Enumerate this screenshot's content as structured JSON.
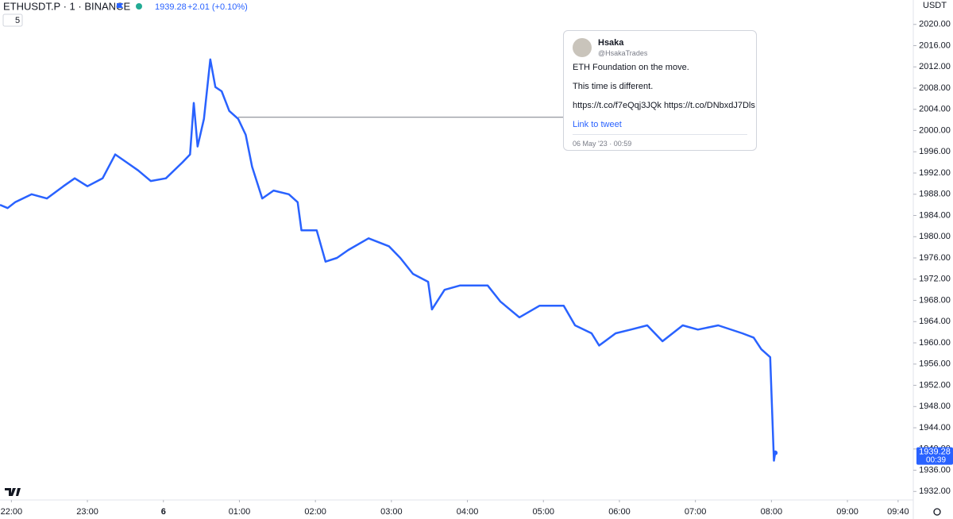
{
  "chart_data": {
    "type": "line",
    "symbol": "ETHUSDT.P · 1 · BINANCE",
    "change": "+2.01 (+0.10%)",
    "currency": "USDT",
    "interval_badge": "5",
    "countdown": "00:39",
    "x": [
      -9,
      -3,
      3,
      16,
      28,
      41,
      50,
      60,
      72,
      82,
      91,
      100,
      110,
      122,
      135,
      141,
      144,
      147,
      152,
      157,
      161,
      166,
      172,
      179,
      185,
      190,
      198,
      207,
      219,
      226,
      229,
      241,
      248,
      257,
      266,
      282,
      298,
      307,
      317,
      329,
      332,
      342,
      354,
      367,
      376,
      386,
      401,
      417,
      436,
      445,
      458,
      464,
      477,
      489,
      502,
      514,
      530,
      542,
      558,
      577,
      586,
      592,
      599,
      602,
      603
    ],
    "series": [
      {
        "name": "ETHUSDT.P",
        "color": "#2962ff",
        "values": [
          1986.0,
          1985.4,
          1986.5,
          1988.0,
          1987.2,
          1989.5,
          1991.0,
          1989.5,
          1991.0,
          1995.5,
          1994.0,
          1992.5,
          1990.5,
          1991.0,
          1994.0,
          1995.5,
          2005.2,
          1997.0,
          2002.2,
          2013.4,
          2008.2,
          2007.4,
          2003.7,
          2002.2,
          1999.2,
          1993.2,
          1987.2,
          1988.7,
          1988.0,
          1986.5,
          1981.2,
          1981.2,
          1975.3,
          1976.0,
          1977.5,
          1979.7,
          1978.2,
          1976.0,
          1973.0,
          1971.5,
          1966.3,
          1970.0,
          1970.8,
          1970.8,
          1970.8,
          1967.8,
          1964.8,
          1967.0,
          1967.0,
          1963.3,
          1961.8,
          1959.5,
          1961.8,
          1962.5,
          1963.3,
          1960.3,
          1963.3,
          1962.5,
          1963.3,
          1961.8,
          1961.0,
          1958.8,
          1957.3,
          1937.8,
          1939.28
        ]
      }
    ],
    "xlim": [
      -9,
      712
    ],
    "ylim": [
      1930.4,
      2024.6
    ],
    "xticks": [
      {
        "value": 0,
        "label": "22:00"
      },
      {
        "value": 60,
        "label": "23:00"
      },
      {
        "value": 120,
        "label": "6"
      },
      {
        "value": 180,
        "label": "01:00"
      },
      {
        "value": 240,
        "label": "02:00"
      },
      {
        "value": 300,
        "label": "03:00"
      },
      {
        "value": 360,
        "label": "04:00"
      },
      {
        "value": 420,
        "label": "05:00"
      },
      {
        "value": 480,
        "label": "06:00"
      },
      {
        "value": 540,
        "label": "07:00"
      },
      {
        "value": 600,
        "label": "08:00"
      },
      {
        "value": 660,
        "label": "09:00"
      },
      {
        "value": 700,
        "label": "09:40"
      }
    ],
    "yticks": [
      {
        "value": 2020,
        "label": "2020.00"
      },
      {
        "value": 2016,
        "label": "2016.00"
      },
      {
        "value": 2012,
        "label": "2012.00"
      },
      {
        "value": 2008,
        "label": "2008.00"
      },
      {
        "value": 2004,
        "label": "2004.00"
      },
      {
        "value": 2000,
        "label": "2000.00"
      },
      {
        "value": 1996,
        "label": "1996.00"
      },
      {
        "value": 1992,
        "label": "1992.00"
      },
      {
        "value": 1988,
        "label": "1988.00"
      },
      {
        "value": 1984,
        "label": "1984.00"
      },
      {
        "value": 1980,
        "label": "1980.00"
      },
      {
        "value": 1976,
        "label": "1976.00"
      },
      {
        "value": 1972,
        "label": "1972.00"
      },
      {
        "value": 1968,
        "label": "1968.00"
      },
      {
        "value": 1964,
        "label": "1964.00"
      },
      {
        "value": 1960,
        "label": "1960.00"
      },
      {
        "value": 1956,
        "label": "1956.00"
      },
      {
        "value": 1952,
        "label": "1952.00"
      },
      {
        "value": 1948,
        "label": "1948.00"
      },
      {
        "value": 1944,
        "label": "1944.00"
      },
      {
        "value": 1940,
        "label": "1940.00"
      },
      {
        "value": 1936,
        "label": "1936.00"
      },
      {
        "value": 1932,
        "label": "1932.00"
      }
    ],
    "annotation": {
      "x": 179,
      "y": 2002.5,
      "author": "Hsaka",
      "handle": "@HsakaTrades",
      "lines": [
        "ETH Foundation on the move.",
        "This time is different.",
        "https://t.co/f7eQqj3JQk https://t.co/DNbxdJ7Dls"
      ],
      "link": "Link to tweet",
      "date": "06 May '23 · 00:59"
    }
  }
}
